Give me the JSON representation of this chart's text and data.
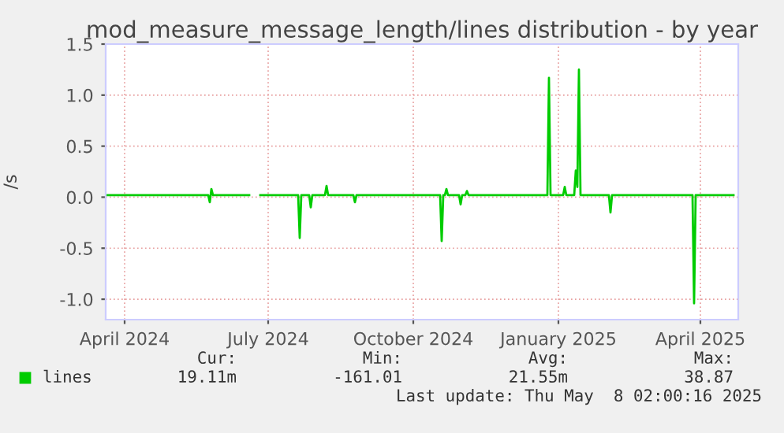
{
  "chart_data": {
    "type": "line",
    "title": "mod_measure_message_length/lines distribution - by year",
    "ylabel": "/s",
    "x": [
      "2024-03-20",
      "2024-05-24",
      "2024-05-25",
      "2024-05-26",
      "2024-05-27",
      "2024-06-19",
      "2024-06-22",
      "2024-06-26",
      "2024-07-20",
      "2024-07-21",
      "2024-07-22",
      "2024-07-27",
      "2024-07-28",
      "2024-07-29",
      "2024-08-06",
      "2024-08-07",
      "2024-08-08",
      "2024-08-24",
      "2024-08-25",
      "2024-08-26",
      "2024-10-18",
      "2024-10-19",
      "2024-10-20",
      "2024-10-21",
      "2024-10-22",
      "2024-10-23",
      "2024-10-30",
      "2024-10-31",
      "2024-11-01",
      "2024-11-03",
      "2024-11-04",
      "2024-11-05",
      "2024-12-25",
      "2024-12-26",
      "2024-12-27",
      "2025-01-04",
      "2025-01-05",
      "2025-01-06",
      "2025-01-11",
      "2025-01-12",
      "2025-01-13",
      "2025-01-14",
      "2025-01-15",
      "2025-02-02",
      "2025-02-03",
      "2025-02-04",
      "2025-03-27",
      "2025-03-28",
      "2025-03-29",
      "2025-04-22"
    ],
    "series": [
      {
        "name": "lines",
        "color": "#00cc00",
        "values": [
          0.02,
          0.02,
          -0.05,
          0.08,
          0.02,
          0.02,
          null,
          0.02,
          0.02,
          -0.4,
          0.02,
          0.02,
          -0.1,
          0.02,
          0.02,
          0.11,
          0.02,
          0.02,
          -0.05,
          0.02,
          0.02,
          -0.43,
          0.02,
          0.02,
          0.08,
          0.02,
          0.02,
          -0.07,
          0.02,
          0.02,
          0.06,
          0.02,
          0.02,
          1.17,
          0.02,
          0.02,
          0.1,
          0.02,
          0.02,
          0.26,
          0.1,
          1.25,
          0.02,
          0.02,
          -0.15,
          0.02,
          0.02,
          -1.04,
          0.02,
          0.02
        ]
      }
    ],
    "xlim": [
      "2024-03-20",
      "2025-04-25"
    ],
    "xticks": [
      {
        "value": "2024-04-01",
        "label": "April 2024"
      },
      {
        "value": "2024-07-01",
        "label": "July 2024"
      },
      {
        "value": "2024-10-01",
        "label": "October 2024"
      },
      {
        "value": "2025-01-01",
        "label": "January 2025"
      },
      {
        "value": "2025-04-01",
        "label": "April 2025"
      }
    ],
    "ylim": [
      -1.2,
      1.5
    ],
    "yticks": [
      {
        "value": -1,
        "label": "-1.0"
      },
      {
        "value": -0.5,
        "label": "-0.5"
      },
      {
        "value": 0,
        "label": "0.0"
      },
      {
        "value": 0.5,
        "label": "0.5"
      },
      {
        "value": 1,
        "label": "1.0"
      },
      {
        "value": 1.5,
        "label": "1.5"
      }
    ],
    "grid": true,
    "legend": "bottom",
    "annotations": [
      "Cur:",
      "Min:",
      "Avg:",
      "Max:",
      "19.11m",
      "-161.01",
      "21.55m",
      "38.87",
      "Last update: Thu May  8 02:00:16 2025"
    ]
  }
}
